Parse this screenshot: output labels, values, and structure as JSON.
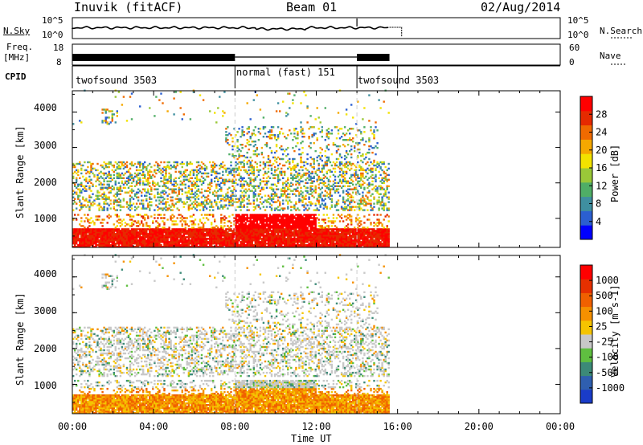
{
  "header": {
    "station": "Inuvik (fitACF)",
    "beam": "Beam 01",
    "date": "02/Aug/2014"
  },
  "upper_panel": {
    "nsky_label": "N.Sky",
    "nsearch_label": "N.Search",
    "left_ticks": [
      "10^5",
      "10^0"
    ],
    "right_ticks": [
      "10^5",
      "10^0"
    ]
  },
  "freq_panel": {
    "label_line1": "Freq.",
    "label_line2": "[MHz]",
    "nave_label": "Nave",
    "left_ticks": [
      "18",
      "8"
    ],
    "right_ticks": [
      "60",
      "0"
    ]
  },
  "cpid": {
    "label": "CPID",
    "segments": [
      {
        "name": "twofsound 3503",
        "start_hour": 0,
        "end_hour": 8
      },
      {
        "name": "normal (fast) 151",
        "start_hour": 8,
        "end_hour": 14
      },
      {
        "name": "twofsound 3503",
        "start_hour": 14,
        "end_hour": 16
      }
    ]
  },
  "power_panel": {
    "ylabel": "Slant Range [km]",
    "yticks": [
      "4000",
      "3000",
      "2000",
      "1000"
    ],
    "colorbar_label": "Power [dB]",
    "colorbar_ticks": [
      "28",
      "24",
      "20",
      "16",
      "12",
      "8",
      "4"
    ],
    "colors": [
      "#0000ff",
      "#2b5fd0",
      "#3f8fa0",
      "#4fae66",
      "#9ac838",
      "#f2e200",
      "#f5a800",
      "#f06a00",
      "#e62a00",
      "#ff0000"
    ]
  },
  "velocity_panel": {
    "ylabel": "Slant Range [km]",
    "yticks": [
      "4000",
      "3000",
      "2000",
      "1000"
    ],
    "colorbar_label": "Velocity [m s-1]",
    "colorbar_ticks": [
      "1000",
      "500",
      "100",
      "25",
      "-25",
      "-100",
      "-500",
      "-1000"
    ],
    "colors": [
      "#1a3cc8",
      "#2f5fb0",
      "#3c8a78",
      "#5fbf40",
      "#c8c8c8",
      "#f5c400",
      "#f59000",
      "#f06000",
      "#e63000",
      "#ff0000"
    ]
  },
  "xaxis": {
    "label": "Time UT",
    "ticks": [
      "00:00",
      "04:00",
      "08:00",
      "12:00",
      "16:00",
      "20:00",
      "00:00"
    ]
  },
  "chart_data": {
    "type": "heatmap",
    "title": "Inuvik (fitACF)  Beam 01  02/Aug/2014",
    "xlabel": "Time UT",
    "ylabel": "Slant Range [km]",
    "xlim_hours": [
      0,
      24
    ],
    "ylim_km": [
      180,
      4600
    ],
    "data_end_hour": 15.6,
    "power_colorbar": {
      "label": "Power [dB]",
      "range": [
        0,
        32
      ],
      "ticks": [
        4,
        8,
        12,
        16,
        20,
        24,
        28
      ]
    },
    "velocity_colorbar": {
      "label": "Velocity [m s-1]",
      "ticks": [
        -1000,
        -500,
        -100,
        -25,
        25,
        100,
        500,
        1000
      ]
    },
    "mode_changes_hours": [
      8,
      14
    ]
  }
}
